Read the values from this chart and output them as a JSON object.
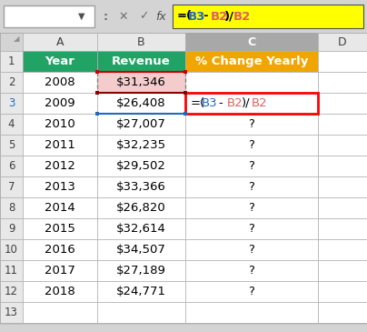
{
  "formula_texts": [
    "=(",
    "B3",
    "-",
    "B2",
    ")/",
    "B2"
  ],
  "formula_colors": [
    "#000000",
    "#1F6AC0",
    "#000000",
    "#E06060",
    "#000000",
    "#E06060"
  ],
  "cell_formula_texts": [
    "=(",
    "B3",
    "-",
    "B2",
    ")/",
    "B2"
  ],
  "cell_formula_colors": [
    "#000000",
    "#1F6AC0",
    "#000000",
    "#E06060",
    "#000000",
    "#E06060"
  ],
  "header_bg_A": "#21A366",
  "header_bg_B": "#21A366",
  "header_bg_C": "#F0A500",
  "col_C_header_bg": "#808080",
  "row2_B_bg": "#F4CCCC",
  "bg_color": "#D4D4D4",
  "cell_bg": "#FFFFFF",
  "formula_bar_bg": "#FFFF00",
  "grid_color": "#B0B0B0",
  "col_header_bg": "#E8E8E8",
  "col_C_highlighted_bg": "#A8A8A8",
  "row_label_bg": "#E8E8E8",
  "row3_label_color": "#1F6AC0",
  "font_size": 9.5,
  "small_font": 8.5,
  "years": [
    "2008",
    "2009",
    "2010",
    "2011",
    "2012",
    "2013",
    "2014",
    "2015",
    "2016",
    "2017",
    "2018"
  ],
  "revenues": [
    "$31,346",
    "$26,408",
    "$27,007",
    "$32,235",
    "$29,502",
    "$33,366",
    "$26,820",
    "$32,614",
    "$34,507",
    "$27,189",
    "$24,771"
  ]
}
